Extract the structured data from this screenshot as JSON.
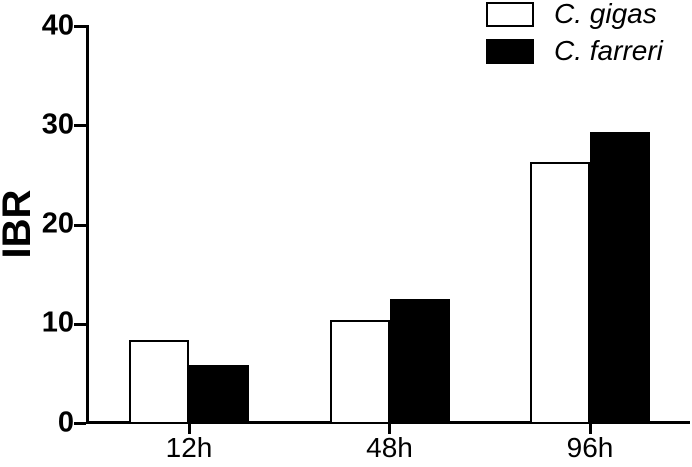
{
  "chart_data": {
    "type": "bar",
    "title": "",
    "xlabel": "",
    "ylabel": "IBR",
    "categories": [
      "12h",
      "48h",
      "96h"
    ],
    "series": [
      {
        "name": "C. gigas",
        "fill": "#ffffff",
        "values": [
          8.5,
          10.5,
          26.4
        ]
      },
      {
        "name": "C. farreri",
        "fill": "#000000",
        "values": [
          5.9,
          12.6,
          29.4
        ]
      }
    ],
    "ylim": [
      0,
      40
    ],
    "yticks": [
      0,
      10,
      20,
      30,
      40
    ],
    "grid": false,
    "legend_position": "top-right",
    "bar_border_color": "#000000",
    "axis_color": "#000000",
    "background_color": "#ffffff"
  }
}
